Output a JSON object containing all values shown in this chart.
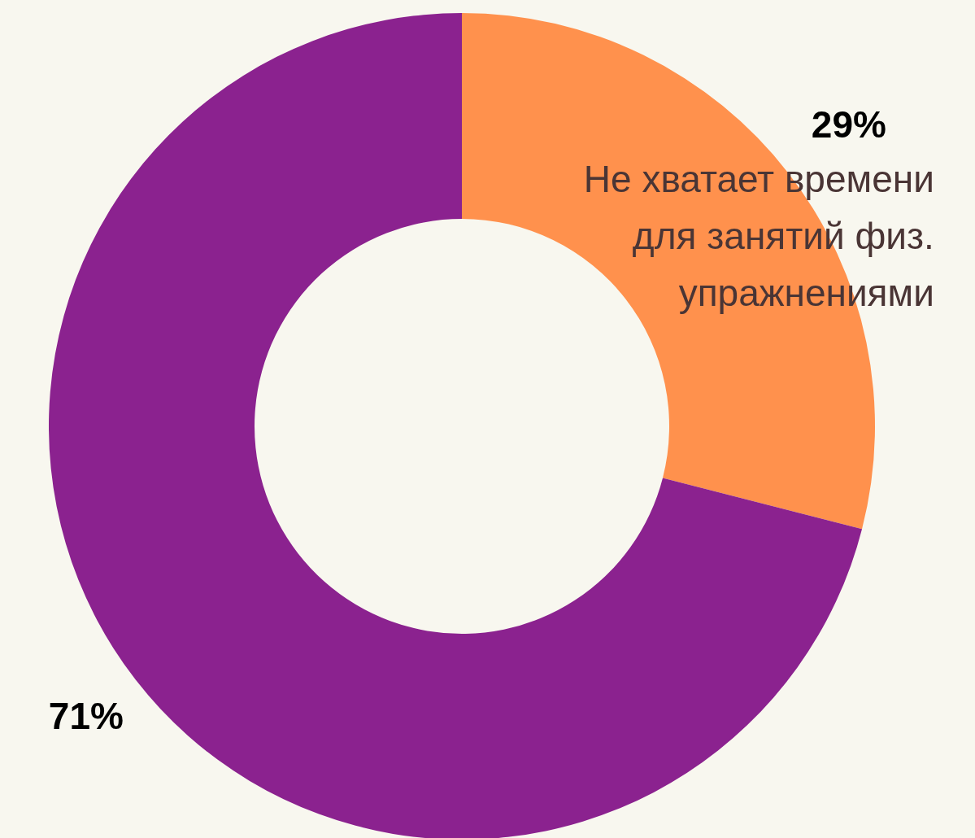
{
  "chart_data": {
    "type": "donut",
    "categories": [
      "Не хватает времени для занятий физ. упражнениями",
      null
    ],
    "values": [
      29,
      71
    ],
    "colors": [
      "#ff914d",
      "#8b228f"
    ],
    "value_labels": [
      "29%",
      "71%"
    ]
  }
}
